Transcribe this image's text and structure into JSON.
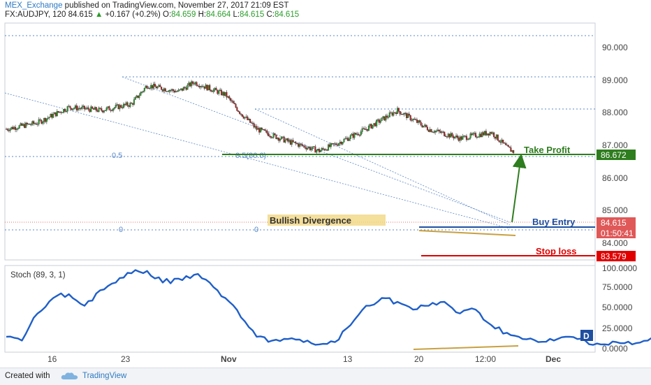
{
  "header": {
    "publisher": "MEX_Exchange",
    "published_text": "published on TradingView.com, November 27, 2017 21:09 EST",
    "symbol_interval": "FX:AUDJPY, 120",
    "last": "84.615",
    "up_arrow": "▲",
    "change": "+0.167 (+0.2%)",
    "o_label": "O:",
    "o_value": "84.659",
    "h_label": "H:",
    "h_value": "84.664",
    "l_label": "L:",
    "l_value": "84.615",
    "c_label": "C:",
    "c_value": "84.615"
  },
  "footer": {
    "created_with": "Created with",
    "brand": "TradingView"
  },
  "colors": {
    "candle_up": "#2a9d2a",
    "candle_down": "#b22222",
    "take_profit": "#2e7d1e",
    "buy_entry": "#1f4fa0",
    "stop_loss": "#e00000",
    "stoch_line": "#1f5fc8",
    "divergence": "#c8a040",
    "fib": "#5a88c8"
  },
  "chart_data": [
    {
      "type": "candlestick",
      "price_axis": {
        "ticks": [
          "90.000",
          "89.000",
          "88.000",
          "87.000",
          "86.000",
          "85.000",
          "84.000"
        ],
        "range": [
          83.3,
          90.9
        ]
      },
      "time_axis": {
        "ticks": [
          "16",
          "23",
          "Nov",
          "13",
          "20",
          "12:00",
          "Dec"
        ]
      },
      "close_path": [
        [
          "Oct 11",
          87.5
        ],
        [
          "Oct 13",
          87.7
        ],
        [
          "Oct 15",
          88.2
        ],
        [
          "Oct 17",
          88.1
        ],
        [
          "Oct 19",
          88.3
        ],
        [
          "Oct 20",
          88.9
        ],
        [
          "Oct 22",
          88.7
        ],
        [
          "Oct 23",
          89.0
        ],
        [
          "Oct 25",
          88.6
        ],
        [
          "Oct 26",
          88.0
        ],
        [
          "Oct 27",
          87.5
        ],
        [
          "Oct 29",
          87.1
        ],
        [
          "Oct 31",
          86.8
        ],
        [
          "Nov 1",
          87.0
        ],
        [
          "Nov 3",
          87.5
        ],
        [
          "Nov 5",
          88.1
        ],
        [
          "Nov 7",
          87.5
        ],
        [
          "Nov 9",
          87.2
        ],
        [
          "Nov 11",
          87.4
        ],
        [
          "Nov 12",
          86.9
        ],
        [
          "Nov 13",
          86.6
        ],
        [
          "Nov 14",
          85.8
        ],
        [
          "Nov 15",
          85.9
        ],
        [
          "Nov 17",
          85.1
        ],
        [
          "Nov 18",
          84.7
        ],
        [
          "Nov 19",
          85.1
        ],
        [
          "Nov 20",
          85.2
        ],
        [
          "Nov 21",
          84.7
        ],
        [
          "Nov 22",
          84.9
        ],
        [
          "Nov 24",
          84.9
        ],
        [
          "Nov 26",
          85.0
        ],
        [
          "Nov 27",
          84.615
        ]
      ],
      "levels": {
        "take_profit": {
          "label": "Take Profit",
          "price": "86.672"
        },
        "buy_entry": {
          "label": "Buy Entry",
          "price": "84.615"
        },
        "stop_loss": {
          "label": "Stop loss",
          "price": "83.579"
        },
        "countdown": "01:50:41"
      },
      "fib": {
        "level_0_5": "0.5",
        "level_0_5_mid": "0.5(86.6)",
        "level_0": "0",
        "level_0_mid": "0"
      },
      "annotation": "Bullish Divergence"
    },
    {
      "type": "line",
      "title": "Stoch (89, 3, 1)",
      "y_axis": {
        "ticks": [
          "100.0000",
          "75.0000",
          "50.0000",
          "25.0000",
          "0.0000"
        ],
        "range": [
          -5,
          107
        ]
      },
      "series": [
        {
          "values": [
            [
              "Oct 11",
              15
            ],
            [
              "Oct 12",
              10
            ],
            [
              "Oct 13",
              45
            ],
            [
              "Oct 14",
              65
            ],
            [
              "Oct 15",
              70
            ],
            [
              "Oct 16",
              55
            ],
            [
              "Oct 17",
              75
            ],
            [
              "Oct 18",
              85
            ],
            [
              "Oct 19",
              97
            ],
            [
              "Oct 20",
              100
            ],
            [
              "Oct 21",
              85
            ],
            [
              "Oct 22",
              90
            ],
            [
              "Oct 23",
              95
            ],
            [
              "Oct 24",
              85
            ],
            [
              "Oct 25",
              65
            ],
            [
              "Oct 26",
              40
            ],
            [
              "Oct 27",
              15
            ],
            [
              "Oct 28",
              10
            ],
            [
              "Oct 29",
              12
            ],
            [
              "Oct 30",
              8
            ],
            [
              "Oct 31",
              5
            ],
            [
              "Nov 1",
              8
            ],
            [
              "Nov 2",
              30
            ],
            [
              "Nov 3",
              55
            ],
            [
              "Nov 4",
              65
            ],
            [
              "Nov 5",
              60
            ],
            [
              "Nov 6",
              50
            ],
            [
              "Nov 7",
              55
            ],
            [
              "Nov 8",
              60
            ],
            [
              "Nov 9",
              45
            ],
            [
              "Nov 10",
              50
            ],
            [
              "Nov 11",
              30
            ],
            [
              "Nov 12",
              20
            ],
            [
              "Nov 13",
              12
            ],
            [
              "Nov 14",
              8
            ],
            [
              "Nov 15",
              10
            ],
            [
              "Nov 16",
              15
            ],
            [
              "Nov 17",
              10
            ],
            [
              "Nov 18",
              5
            ],
            [
              "Nov 19",
              8
            ],
            [
              "Nov 20",
              5
            ],
            [
              "Nov 21",
              10
            ],
            [
              "Nov 22",
              25
            ],
            [
              "Nov 23",
              15
            ],
            [
              "Nov 24",
              12
            ],
            [
              "Nov 25",
              30
            ],
            [
              "Nov 26",
              20
            ],
            [
              "Nov 27",
              18
            ]
          ]
        }
      ],
      "badge": "D"
    }
  ]
}
